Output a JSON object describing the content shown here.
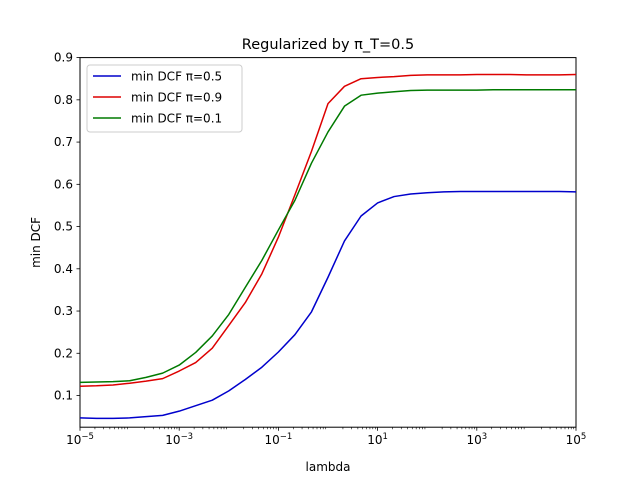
{
  "chart_data": {
    "type": "line",
    "title": "Regularized by π_T=0.5",
    "xlabel": "lambda",
    "ylabel": "min DCF",
    "x_scale": "log",
    "xlim": [
      1e-05,
      100000
    ],
    "ylim": [
      0.025,
      0.9
    ],
    "x_ticks": [
      1e-05,
      0.001,
      0.1,
      10,
      1000,
      100000
    ],
    "x_tick_labels": [
      {
        "base": "10",
        "exp": "−5"
      },
      {
        "base": "10",
        "exp": "−3"
      },
      {
        "base": "10",
        "exp": "−1"
      },
      {
        "base": "10",
        "exp": "1"
      },
      {
        "base": "10",
        "exp": "3"
      },
      {
        "base": "10",
        "exp": "5"
      }
    ],
    "y_ticks": [
      0.1,
      0.2,
      0.3,
      0.4,
      0.5,
      0.6,
      0.7,
      0.8,
      0.9
    ],
    "y_tick_labels": [
      "0.1",
      "0.2",
      "0.3",
      "0.4",
      "0.5",
      "0.6",
      "0.7",
      "0.8",
      "0.9"
    ],
    "grid": false,
    "legend_position": "top-left",
    "x": [
      1e-05,
      2.15e-05,
      4.64e-05,
      0.0001,
      0.000215,
      0.000464,
      0.001,
      0.00215,
      0.00464,
      0.01,
      0.0215,
      0.0464,
      0.1,
      0.215,
      0.464,
      1,
      2.15,
      4.64,
      10,
      21.5,
      46.4,
      100,
      215,
      464,
      1000,
      2154,
      4642,
      10000,
      21544,
      46416,
      100000
    ],
    "series": [
      {
        "name": "min DCF π=0.5",
        "color": "#0000cc",
        "values": [
          0.047,
          0.046,
          0.046,
          0.047,
          0.05,
          0.053,
          0.063,
          0.076,
          0.089,
          0.111,
          0.138,
          0.167,
          0.203,
          0.244,
          0.298,
          0.38,
          0.466,
          0.525,
          0.556,
          0.571,
          0.577,
          0.58,
          0.582,
          0.583,
          0.583,
          0.583,
          0.583,
          0.583,
          0.583,
          0.583,
          0.582
        ]
      },
      {
        "name": "min DCF π=0.9",
        "color": "#dd0000",
        "values": [
          0.122,
          0.123,
          0.125,
          0.129,
          0.134,
          0.14,
          0.158,
          0.178,
          0.212,
          0.266,
          0.32,
          0.388,
          0.475,
          0.575,
          0.678,
          0.791,
          0.832,
          0.85,
          0.853,
          0.855,
          0.858,
          0.859,
          0.859,
          0.859,
          0.86,
          0.86,
          0.86,
          0.859,
          0.859,
          0.859,
          0.86
        ]
      },
      {
        "name": "min DCF π=0.1",
        "color": "#007a00",
        "values": [
          0.131,
          0.132,
          0.133,
          0.135,
          0.143,
          0.153,
          0.172,
          0.202,
          0.241,
          0.292,
          0.356,
          0.42,
          0.492,
          0.562,
          0.65,
          0.724,
          0.785,
          0.811,
          0.816,
          0.819,
          0.822,
          0.823,
          0.823,
          0.823,
          0.823,
          0.824,
          0.824,
          0.824,
          0.824,
          0.824,
          0.824
        ]
      }
    ]
  }
}
